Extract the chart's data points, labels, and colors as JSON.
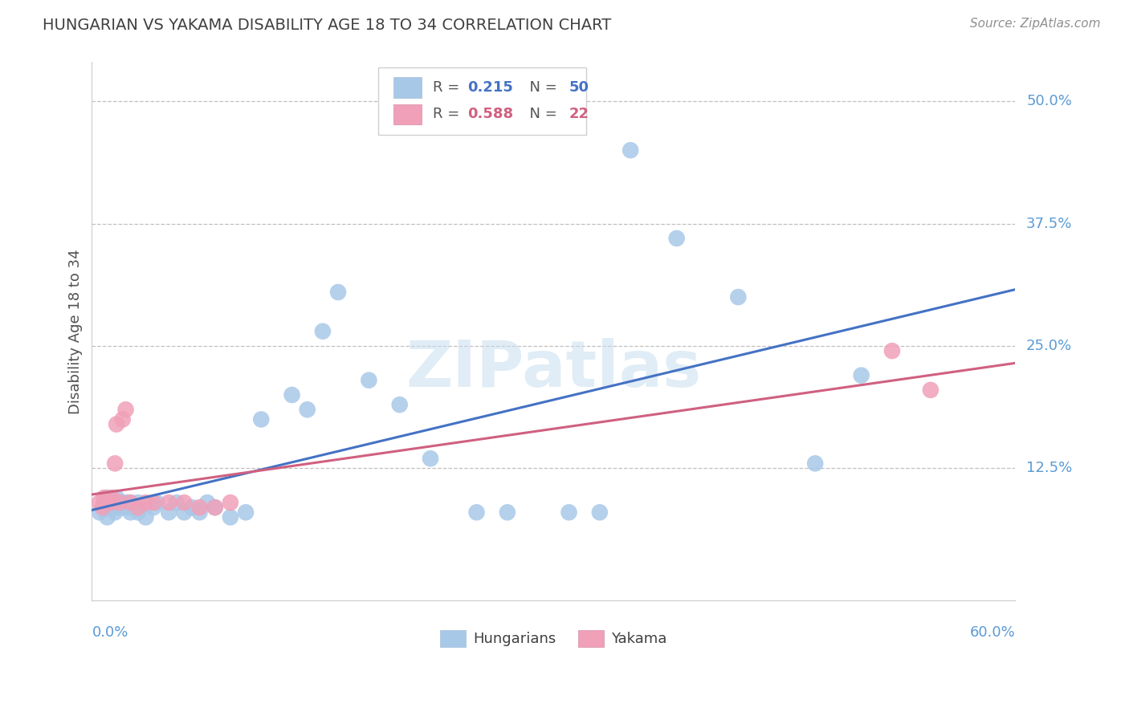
{
  "title": "HUNGARIAN VS YAKAMA DISABILITY AGE 18 TO 34 CORRELATION CHART",
  "source": "Source: ZipAtlas.com",
  "ylabel": "Disability Age 18 to 34",
  "xlim": [
    0.0,
    0.6
  ],
  "ylim": [
    -0.01,
    0.54
  ],
  "ytick_vals": [
    0.0,
    0.125,
    0.25,
    0.375,
    0.5
  ],
  "ytick_labels": [
    "",
    "12.5%",
    "25.0%",
    "37.5%",
    "50.0%"
  ],
  "legend_blue_r": "0.215",
  "legend_blue_n": "50",
  "legend_pink_r": "0.588",
  "legend_pink_n": "22",
  "blue_color": "#a8c8e8",
  "pink_color": "#f0a0b8",
  "blue_line_color": "#4472c4",
  "pink_line_color": "#d06080",
  "title_color": "#404040",
  "tick_label_color": "#5b9bd5",
  "watermark": "ZIPatlas",
  "hungarian_x": [
    0.005,
    0.008,
    0.01,
    0.01,
    0.01,
    0.012,
    0.013,
    0.015,
    0.015,
    0.016,
    0.018,
    0.018,
    0.02,
    0.02,
    0.022,
    0.023,
    0.025,
    0.025,
    0.028,
    0.03,
    0.03,
    0.035,
    0.04,
    0.042,
    0.05,
    0.055,
    0.06,
    0.065,
    0.07,
    0.075,
    0.08,
    0.09,
    0.1,
    0.11,
    0.13,
    0.14,
    0.15,
    0.16,
    0.18,
    0.2,
    0.22,
    0.25,
    0.27,
    0.31,
    0.33,
    0.35,
    0.38,
    0.42,
    0.47,
    0.5
  ],
  "hungarian_y": [
    0.08,
    0.09,
    0.085,
    0.095,
    0.075,
    0.09,
    0.085,
    0.09,
    0.08,
    0.095,
    0.085,
    0.09,
    0.085,
    0.09,
    0.09,
    0.085,
    0.09,
    0.08,
    0.085,
    0.09,
    0.08,
    0.075,
    0.085,
    0.09,
    0.08,
    0.09,
    0.08,
    0.085,
    0.08,
    0.09,
    0.085,
    0.075,
    0.08,
    0.175,
    0.2,
    0.185,
    0.265,
    0.305,
    0.215,
    0.19,
    0.135,
    0.08,
    0.08,
    0.08,
    0.08,
    0.45,
    0.36,
    0.3,
    0.13,
    0.22
  ],
  "yakama_x": [
    0.005,
    0.007,
    0.008,
    0.01,
    0.012,
    0.013,
    0.015,
    0.016,
    0.018,
    0.02,
    0.022,
    0.025,
    0.03,
    0.035,
    0.04,
    0.05,
    0.06,
    0.07,
    0.08,
    0.09,
    0.52,
    0.545
  ],
  "yakama_y": [
    0.09,
    0.085,
    0.095,
    0.09,
    0.09,
    0.095,
    0.13,
    0.17,
    0.09,
    0.175,
    0.185,
    0.09,
    0.085,
    0.09,
    0.09,
    0.09,
    0.09,
    0.085,
    0.085,
    0.09,
    0.245,
    0.205
  ]
}
